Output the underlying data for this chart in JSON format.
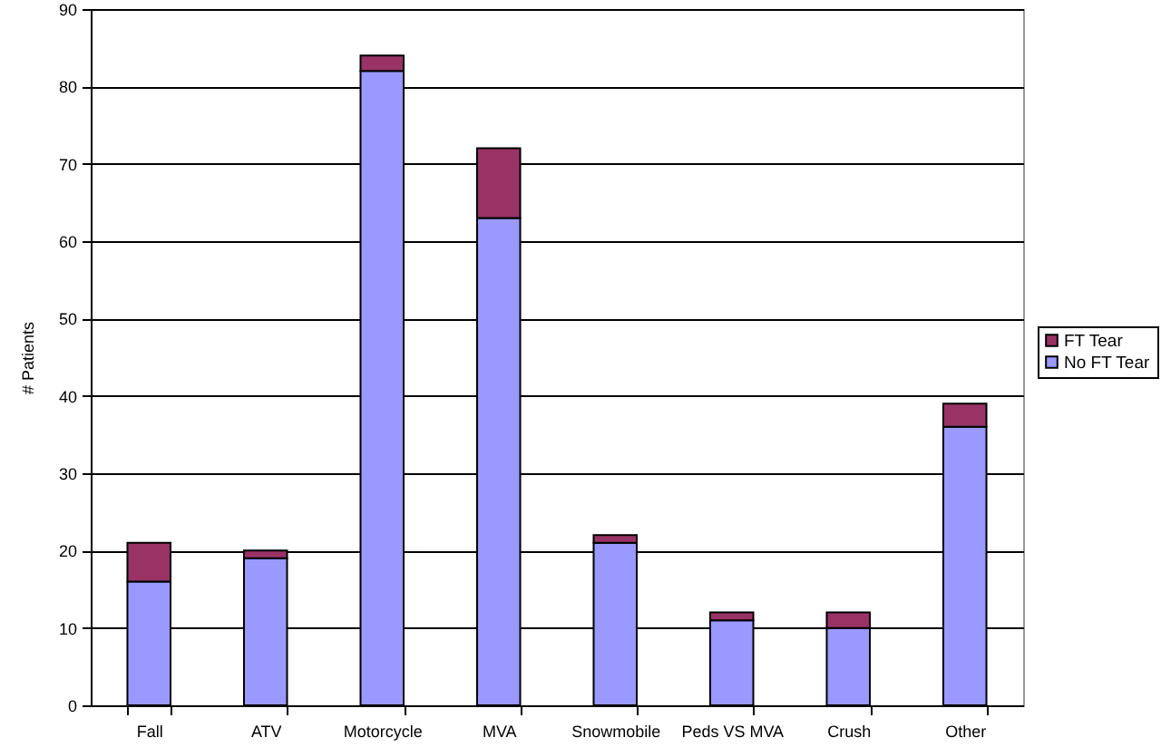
{
  "chart_data": {
    "type": "bar",
    "ylabel": "# Patients",
    "categories": [
      "Fall",
      "ATV",
      "Motorcycle",
      "MVA",
      "Snowmobile",
      "Peds VS MVA",
      "Crush",
      "Other"
    ],
    "stacked": true,
    "series": [
      {
        "name": "No FT Tear",
        "color": "#9999ff",
        "values": [
          16,
          19,
          82,
          63,
          21,
          11,
          10,
          36
        ]
      },
      {
        "name": "FT Tear",
        "color": "#993366",
        "values": [
          5,
          1,
          2,
          9,
          1,
          1,
          2,
          3
        ]
      }
    ],
    "ylim": [
      0,
      90
    ],
    "yticks": [
      0,
      10,
      20,
      30,
      40,
      50,
      60,
      70,
      80,
      90
    ],
    "grid": "y",
    "legend": "right"
  }
}
